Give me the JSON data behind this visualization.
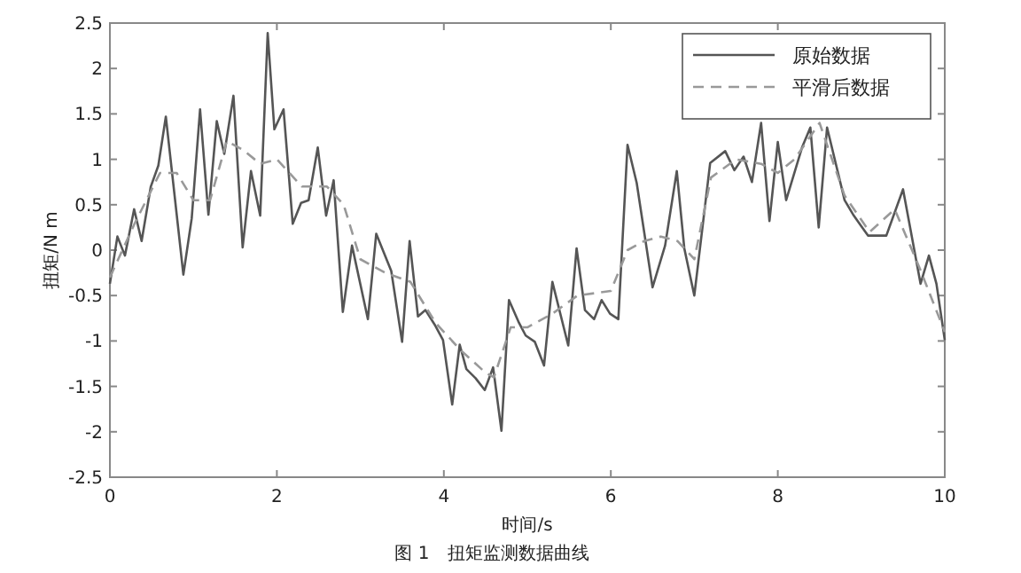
{
  "chart_data": {
    "type": "line",
    "xlabel": "时间/s",
    "ylabel": "扭矩/N m",
    "annotations": [
      "图 1　扭矩监测数据曲线"
    ],
    "xlim": [
      0,
      10
    ],
    "ylim": [
      -2.5,
      2.5
    ],
    "xticks": [
      0,
      2,
      4,
      6,
      8,
      10
    ],
    "yticks": [
      -2.5,
      -2,
      -1.5,
      -1,
      -0.5,
      0,
      0.5,
      1,
      1.5,
      2,
      2.5
    ],
    "grid": false,
    "legend": "top right",
    "marker": "none",
    "series": [
      {
        "name": "原始数据",
        "color": "#555555",
        "line_style": "solid",
        "x": [
          0,
          0.09,
          0.18,
          0.29,
          0.38,
          0.49,
          0.58,
          0.67,
          0.88,
          0.98,
          1.08,
          1.18,
          1.28,
          1.37,
          1.48,
          1.59,
          1.69,
          1.8,
          1.89,
          1.97,
          2.08,
          2.19,
          2.29,
          2.38,
          2.49,
          2.59,
          2.68,
          2.79,
          2.9,
          3.09,
          3.19,
          3.37,
          3.5,
          3.59,
          3.69,
          3.78,
          3.89,
          3.99,
          4.1,
          4.19,
          4.27,
          4.38,
          4.49,
          4.59,
          4.69,
          4.78,
          4.9,
          4.98,
          5.09,
          5.2,
          5.3,
          5.49,
          5.59,
          5.69,
          5.8,
          5.89,
          5.99,
          6.09,
          6.2,
          6.31,
          6.5,
          6.65,
          6.79,
          6.88,
          7.0,
          7.19,
          7.37,
          7.48,
          7.59,
          7.69,
          7.8,
          7.9,
          8.0,
          8.1,
          8.29,
          8.39,
          8.49,
          8.59,
          8.8,
          8.91,
          9.08,
          9.3,
          9.5,
          9.71,
          9.81,
          9.9,
          10
        ],
        "values": [
          -0.37,
          0.15,
          -0.06,
          0.45,
          0.1,
          0.7,
          0.93,
          1.47,
          -0.27,
          0.35,
          1.55,
          0.39,
          1.42,
          1.06,
          1.7,
          0.03,
          0.87,
          0.38,
          2.39,
          1.33,
          1.55,
          0.29,
          0.52,
          0.55,
          1.13,
          0.38,
          0.77,
          -0.68,
          0.05,
          -0.76,
          0.18,
          -0.23,
          -1.01,
          0.1,
          -0.73,
          -0.66,
          -0.82,
          -0.99,
          -1.7,
          -1.04,
          -1.31,
          -1.41,
          -1.54,
          -1.29,
          -1.99,
          -0.55,
          -0.8,
          -0.94,
          -1.01,
          -1.27,
          -0.35,
          -1.05,
          0.02,
          -0.66,
          -0.76,
          -0.55,
          -0.7,
          -0.76,
          1.16,
          0.74,
          -0.41,
          0.05,
          0.87,
          0.02,
          -0.5,
          0.96,
          1.09,
          0.88,
          1.03,
          0.75,
          1.4,
          0.32,
          1.19,
          0.55,
          1.13,
          1.35,
          0.25,
          1.35,
          0.55,
          0.38,
          0.16,
          0.16,
          0.67,
          -0.37,
          -0.06,
          -0.37,
          -0.99
        ]
      },
      {
        "name": "平滑后数据",
        "color": "#999999",
        "line_style": "dashed",
        "x": [
          0,
          0.3,
          0.6,
          0.8,
          1.0,
          1.2,
          1.4,
          1.6,
          1.8,
          2.0,
          2.3,
          2.6,
          2.8,
          3.0,
          3.3,
          3.6,
          3.9,
          4.2,
          4.5,
          4.6,
          4.8,
          5.0,
          5.3,
          5.6,
          6.0,
          6.2,
          6.4,
          6.6,
          6.8,
          7.0,
          7.2,
          7.5,
          7.8,
          8.0,
          8.2,
          8.5,
          8.8,
          9.1,
          9.4,
          9.7,
          10
        ],
        "values": [
          -0.3,
          0.3,
          0.85,
          0.85,
          0.55,
          0.55,
          1.2,
          1.1,
          0.95,
          1.0,
          0.7,
          0.7,
          0.5,
          -0.1,
          -0.25,
          -0.35,
          -0.8,
          -1.1,
          -1.35,
          -1.4,
          -0.85,
          -0.85,
          -0.7,
          -0.5,
          -0.45,
          0.0,
          0.1,
          0.15,
          0.1,
          -0.1,
          0.8,
          1.0,
          0.95,
          0.85,
          1.0,
          1.4,
          0.6,
          0.2,
          0.45,
          -0.2,
          -0.9
        ]
      }
    ]
  }
}
